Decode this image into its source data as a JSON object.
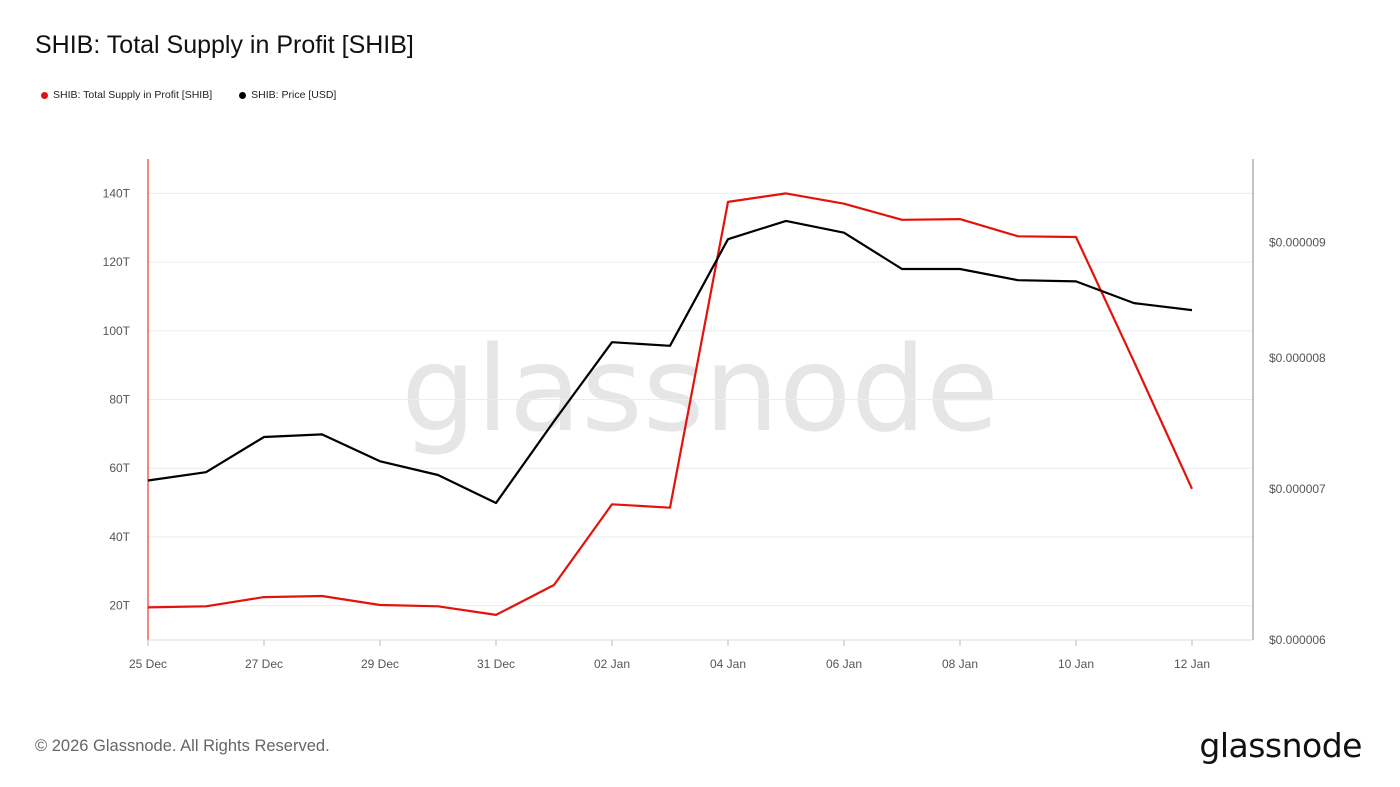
{
  "title": "SHIB: Total Supply in Profit [SHIB]",
  "legend": [
    {
      "label": "SHIB: Total Supply in Profit [SHIB]",
      "color": "#e3120b"
    },
    {
      "label": "SHIB: Price [USD]",
      "color": "#000000"
    }
  ],
  "watermark": "glassnode",
  "footer": "© 2026 Glassnode. All Rights Reserved.",
  "brand": "glassnode",
  "chart_data": {
    "type": "line",
    "title": "SHIB: Total Supply in Profit [SHIB]",
    "x": [
      "25 Dec",
      "26 Dec",
      "27 Dec",
      "28 Dec",
      "29 Dec",
      "30 Dec",
      "31 Dec",
      "01 Jan",
      "02 Jan",
      "03 Jan",
      "04 Jan",
      "05 Jan",
      "06 Jan",
      "07 Jan",
      "08 Jan",
      "09 Jan",
      "10 Jan",
      "11 Jan",
      "12 Jan"
    ],
    "x_tick_labels": [
      "25 Dec",
      "27 Dec",
      "29 Dec",
      "31 Dec",
      "02 Jan",
      "04 Jan",
      "06 Jan",
      "08 Jan",
      "10 Jan",
      "12 Jan"
    ],
    "y_left": {
      "ticks": [
        20,
        40,
        60,
        80,
        100,
        120,
        140
      ],
      "tick_labels": [
        "20T",
        "40T",
        "60T",
        "80T",
        "100T",
        "120T",
        "140T"
      ],
      "ylim": [
        10,
        150
      ]
    },
    "y_right": {
      "ticks": [
        6e-06,
        7e-06,
        8e-06,
        9e-06
      ],
      "tick_labels": [
        "$0.000006",
        "$0.000007",
        "$0.000008",
        "$0.000009"
      ],
      "scale": "log",
      "ylim": [
        6e-06,
        9.8e-06
      ]
    },
    "grid": true,
    "legend_position": "top-left",
    "series": [
      {
        "name": "SHIB: Total Supply in Profit [SHIB]",
        "axis": "left",
        "color": "#e3120b",
        "values": [
          19.5,
          19.8,
          22.5,
          22.8,
          20.2,
          19.8,
          17.3,
          26.0,
          49.5,
          48.5,
          137.5,
          140.0,
          137.0,
          132.3,
          132.5,
          127.5,
          127.3,
          91.0,
          54.0
        ]
      },
      {
        "name": "SHIB: Price [USD]",
        "axis": "right",
        "color": "#000000",
        "values": [
          7.06e-06,
          7.12e-06,
          7.38e-06,
          7.4e-06,
          7.2e-06,
          7.1e-06,
          6.9e-06,
          7.5e-06,
          8.13e-06,
          8.1e-06,
          9.03e-06,
          9.2e-06,
          9.09e-06,
          8.76e-06,
          8.76e-06,
          8.66e-06,
          8.65e-06,
          8.46e-06,
          8.4e-06
        ]
      }
    ]
  }
}
